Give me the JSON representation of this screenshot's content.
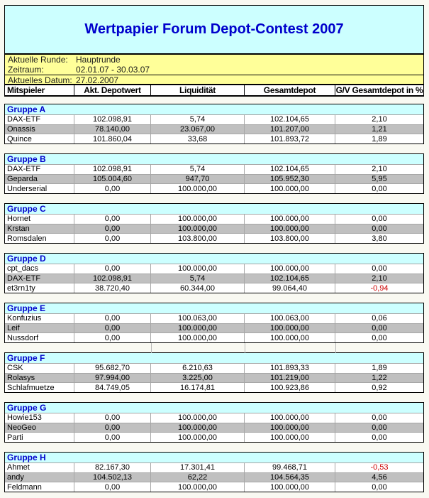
{
  "title": {
    "text": "Wertpapier Forum Depot-Contest 2007",
    "color": "#0000CC",
    "background": "#CCFFFF"
  },
  "info": {
    "background": "#FFFF99",
    "rows": [
      {
        "label": "Aktuelle Runde:",
        "value": "Hauptrunde"
      },
      {
        "label": "Zeitraum:",
        "value": "02.01.07 - 30.03.07"
      },
      {
        "label": "Aktuelles Datum:",
        "value": "27.02.2007"
      }
    ]
  },
  "table": {
    "columns": [
      "Mitspieler",
      "Akt. Depotwert",
      "Liquidität",
      "Gesamtdepot",
      "G/V Gesamtdepot in %"
    ],
    "colors": {
      "group_header_bg": "#CCFFFF",
      "row_bg": "#FFFFFF",
      "row_alt_bg": "#C0C0C0",
      "group_label": "#0000CC",
      "negative_value": "#CC0000"
    }
  },
  "groups": [
    {
      "name": "Gruppe A",
      "rows": [
        {
          "player": "DAX-ETF",
          "values": [
            "102.098,91",
            "5,74",
            "102.104,65",
            "2,10"
          ]
        },
        {
          "player": "Onassis",
          "values": [
            "78.140,00",
            "23.067,00",
            "101.207,00",
            "1,21"
          ]
        },
        {
          "player": "Quince",
          "values": [
            "101.860,04",
            "33,68",
            "101.893,72",
            "1,89"
          ]
        }
      ]
    },
    {
      "name": "Gruppe B",
      "rows": [
        {
          "player": "DAX-ETF",
          "values": [
            "102.098,91",
            "5,74",
            "102.104,65",
            "2,10"
          ]
        },
        {
          "player": "Geparda",
          "values": [
            "105.004,60",
            "947,70",
            "105.952,30",
            "5,95"
          ]
        },
        {
          "player": "Underserial",
          "values": [
            "0,00",
            "100.000,00",
            "100.000,00",
            "0,00"
          ]
        }
      ]
    },
    {
      "name": "Gruppe C",
      "rows": [
        {
          "player": "Hornet",
          "values": [
            "0,00",
            "100.000,00",
            "100.000,00",
            "0,00"
          ]
        },
        {
          "player": "Krstan",
          "values": [
            "0,00",
            "100.000,00",
            "100.000,00",
            "0,00"
          ]
        },
        {
          "player": "Romsdalen",
          "values": [
            "0,00",
            "103.800,00",
            "103.800,00",
            "3,80"
          ]
        }
      ]
    },
    {
      "name": "Gruppe D",
      "rows": [
        {
          "player": "cpt_dacs",
          "values": [
            "0,00",
            "100.000,00",
            "100.000,00",
            "0,00"
          ]
        },
        {
          "player": "DAX-ETF",
          "values": [
            "102.098,91",
            "5,74",
            "102.104,65",
            "2,10"
          ]
        },
        {
          "player": "et3rn1ty",
          "values": [
            "38.720,40",
            "60.344,00",
            "99.064,40",
            "-0,94"
          ]
        }
      ]
    },
    {
      "name": "Gruppe E",
      "rows": [
        {
          "player": "Konfuzius",
          "values": [
            "0,00",
            "100.063,00",
            "100.063,00",
            "0,06"
          ]
        },
        {
          "player": "Leif",
          "values": [
            "0,00",
            "100.000,00",
            "100.000,00",
            "0,00"
          ]
        },
        {
          "player": "Nussdorf",
          "values": [
            "0,00",
            "100.000,00",
            "100.000,00",
            "0,00"
          ]
        }
      ]
    },
    {
      "name": "Gruppe F",
      "rows": [
        {
          "player": "CSK",
          "values": [
            "95.682,70",
            "6.210,63",
            "101.893,33",
            "1,89"
          ]
        },
        {
          "player": "Rolasys",
          "values": [
            "97.994,00",
            "3.225,00",
            "101.219,00",
            "1,22"
          ]
        },
        {
          "player": "Schlafmuetze",
          "values": [
            "84.749,05",
            "16.174,81",
            "100.923,86",
            "0,92"
          ]
        }
      ]
    },
    {
      "name": "Gruppe G",
      "rows": [
        {
          "player": "Howie153",
          "values": [
            "0,00",
            "100.000,00",
            "100.000,00",
            "0,00"
          ]
        },
        {
          "player": "NeoGeo",
          "values": [
            "0,00",
            "100.000,00",
            "100.000,00",
            "0,00"
          ]
        },
        {
          "player": "Parti",
          "values": [
            "0,00",
            "100.000,00",
            "100.000,00",
            "0,00"
          ]
        }
      ]
    },
    {
      "name": "Gruppe H",
      "rows": [
        {
          "player": "Ahmet",
          "values": [
            "82.167,30",
            "17.301,41",
            "99.468,71",
            "-0,53"
          ]
        },
        {
          "player": "andy",
          "values": [
            "104.502,13",
            "62,22",
            "104.564,35",
            "4,56"
          ]
        },
        {
          "player": "Feldmann",
          "values": [
            "0,00",
            "100.000,00",
            "100.000,00",
            "0,00"
          ]
        }
      ]
    }
  ]
}
